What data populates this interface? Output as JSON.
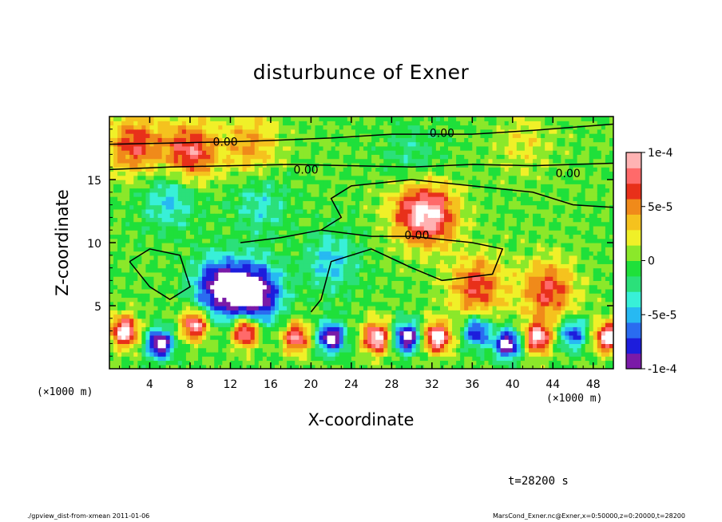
{
  "title": "disturbunce of Exner",
  "axes": {
    "xlabel": "X-coordinate",
    "ylabel": "Z-coordinate",
    "x_unit": "(×1000 m)",
    "y_unit": "(×1000 m)"
  },
  "time_label": "t=28200 s",
  "footer": {
    "left": "./gpview_dist-from-xmean  2011-01-06",
    "right": "MarsCond_Exner.nc@Exner,x=0:50000,z=0:20000,t=28200"
  },
  "colors": {
    "palette": [
      "#7a1aa8",
      "#1d1ddc",
      "#2a6cf0",
      "#27b9f2",
      "#38f0d8",
      "#2be07a",
      "#1fe03a",
      "#8be82a",
      "#f0f028",
      "#f5c21e",
      "#f08a1a",
      "#e8301a",
      "#ff6a6a",
      "#ffb3b3"
    ]
  },
  "chart_data": {
    "type": "heatmap",
    "title": "disturbunce of Exner",
    "xlabel": "X-coordinate",
    "ylabel": "Z-coordinate",
    "x_range": [
      0,
      50
    ],
    "y_range": [
      0,
      20
    ],
    "x_ticks": [
      4,
      8,
      12,
      16,
      20,
      24,
      28,
      32,
      36,
      40,
      44,
      48
    ],
    "y_ticks": [
      5,
      10,
      15
    ],
    "colorbar": {
      "range": [
        -0.0001,
        0.0001
      ],
      "tick_values": [
        0.0001,
        5e-05,
        0,
        -5e-05,
        -0.0001
      ],
      "tick_labels": [
        "1e-4",
        "5e-5",
        "0",
        "-5e-5",
        "-1e-4"
      ]
    },
    "contour_labels": [
      "0.00",
      "0.00",
      "0.00",
      "0.00",
      "0.00"
    ],
    "features": [
      {
        "x": 2.5,
        "z": 17.8,
        "value": 6e-05
      },
      {
        "x": 8.0,
        "z": 17.2,
        "value": 7e-05
      },
      {
        "x": 14.0,
        "z": 17.8,
        "value": 4e-05
      },
      {
        "x": 30.0,
        "z": 17.0,
        "value": -2e-05
      },
      {
        "x": 41.0,
        "z": 18.0,
        "value": 2e-05
      },
      {
        "x": 6.0,
        "z": 13.5,
        "value": -4e-05
      },
      {
        "x": 15.0,
        "z": 13.0,
        "value": -3e-05
      },
      {
        "x": 30.0,
        "z": 12.5,
        "value": 4e-05
      },
      {
        "x": 32.0,
        "z": 12.2,
        "value": 7e-05
      },
      {
        "x": 22.0,
        "z": 8.5,
        "value": -4e-05
      },
      {
        "x": 11.0,
        "z": 6.5,
        "value": -9e-05
      },
      {
        "x": 14.5,
        "z": 6.0,
        "value": -0.0001
      },
      {
        "x": 36.5,
        "z": 6.5,
        "value": 6e-05
      },
      {
        "x": 43.5,
        "z": 6.2,
        "value": 6e-05
      },
      {
        "x": 1.5,
        "z": 3.0,
        "value": 0.0001
      },
      {
        "x": 5.0,
        "z": 2.0,
        "value": -0.0001
      },
      {
        "x": 8.5,
        "z": 3.5,
        "value": 9e-05
      },
      {
        "x": 13.5,
        "z": 3.0,
        "value": 0.0001
      },
      {
        "x": 18.5,
        "z": 2.5,
        "value": 8e-05
      },
      {
        "x": 22.0,
        "z": 2.5,
        "value": -0.0001
      },
      {
        "x": 26.5,
        "z": 2.5,
        "value": 0.0001
      },
      {
        "x": 29.5,
        "z": 2.5,
        "value": -0.0001
      },
      {
        "x": 32.5,
        "z": 2.5,
        "value": 0.0001
      },
      {
        "x": 36.5,
        "z": 3.0,
        "value": -8e-05
      },
      {
        "x": 39.5,
        "z": 2.0,
        "value": -0.0001
      },
      {
        "x": 42.5,
        "z": 2.5,
        "value": 9e-05
      },
      {
        "x": 46.0,
        "z": 2.8,
        "value": -7e-05
      },
      {
        "x": 49.5,
        "z": 2.5,
        "value": 0.0001
      }
    ],
    "grid": false,
    "legend_position": "right"
  }
}
